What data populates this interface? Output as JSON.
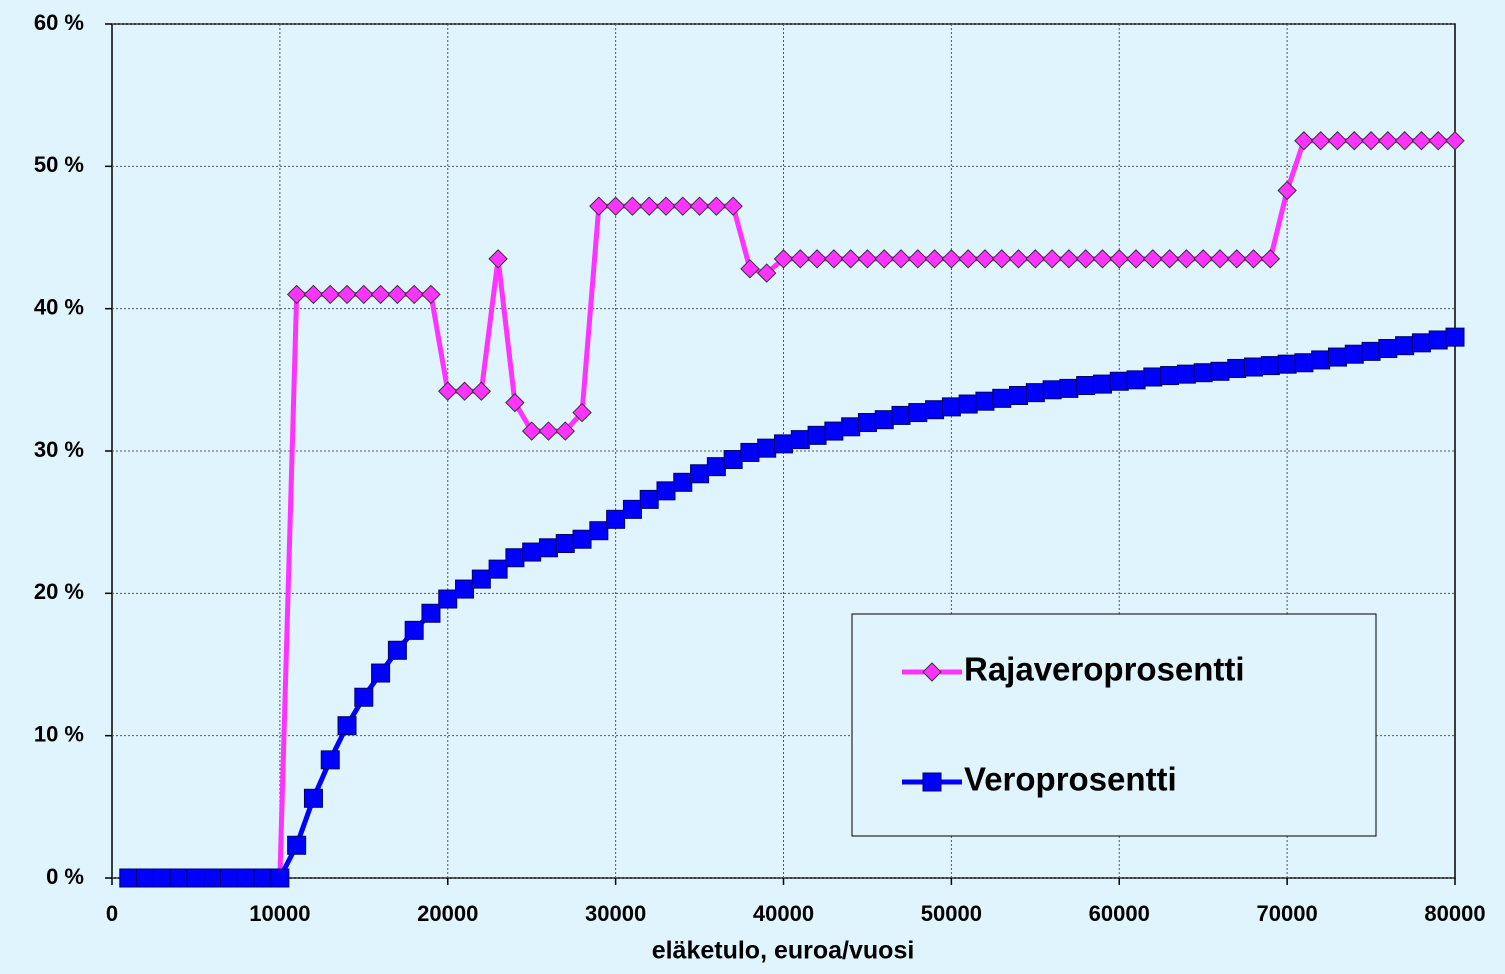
{
  "chart_data": {
    "type": "line",
    "x_label": "eläketulo, euroa/vuosi",
    "x": [
      1000,
      2000,
      3000,
      4000,
      5000,
      6000,
      7000,
      8000,
      9000,
      10000,
      11000,
      12000,
      13000,
      14000,
      15000,
      16000,
      17000,
      18000,
      19000,
      20000,
      21000,
      22000,
      23000,
      24000,
      25000,
      26000,
      27000,
      28000,
      29000,
      30000,
      31000,
      32000,
      33000,
      34000,
      35000,
      36000,
      37000,
      38000,
      39000,
      40000,
      41000,
      42000,
      43000,
      44000,
      45000,
      46000,
      47000,
      48000,
      49000,
      50000,
      51000,
      52000,
      53000,
      54000,
      55000,
      56000,
      57000,
      58000,
      59000,
      60000,
      61000,
      62000,
      63000,
      64000,
      65000,
      66000,
      67000,
      68000,
      69000,
      70000,
      71000,
      72000,
      73000,
      74000,
      75000,
      76000,
      77000,
      78000,
      79000,
      80000
    ],
    "series": [
      {
        "name": "Rajaveroprosentti",
        "color": "#ff33ff",
        "marker": "diamond",
        "values": [
          0,
          0,
          0,
          0,
          0,
          0,
          0,
          0,
          0,
          0,
          41,
          41,
          41,
          41,
          41,
          41,
          41,
          41,
          41,
          34.2,
          34.2,
          34.2,
          43.5,
          33.4,
          31.4,
          31.4,
          31.4,
          32.7,
          47.2,
          47.2,
          47.2,
          47.2,
          47.2,
          47.2,
          47.2,
          47.2,
          47.2,
          42.8,
          42.5,
          43.5,
          43.5,
          43.5,
          43.5,
          43.5,
          43.5,
          43.5,
          43.5,
          43.5,
          43.5,
          43.5,
          43.5,
          43.5,
          43.5,
          43.5,
          43.5,
          43.5,
          43.5,
          43.5,
          43.5,
          43.5,
          43.5,
          43.5,
          43.5,
          43.5,
          43.5,
          43.5,
          43.5,
          43.5,
          43.5,
          48.3,
          51.8,
          51.8,
          51.8,
          51.8,
          51.8,
          51.8,
          51.8,
          51.8,
          51.8,
          51.8
        ]
      },
      {
        "name": "Veroprosentti",
        "color": "#0000ff",
        "marker": "square",
        "values": [
          0,
          0,
          0,
          0,
          0,
          0,
          0,
          0,
          0,
          0,
          2.3,
          5.6,
          8.3,
          10.7,
          12.7,
          14.4,
          16.0,
          17.4,
          18.6,
          19.6,
          20.3,
          21.0,
          21.7,
          22.5,
          22.9,
          23.2,
          23.5,
          23.8,
          24.4,
          25.2,
          25.9,
          26.6,
          27.2,
          27.8,
          28.4,
          28.9,
          29.4,
          29.9,
          30.2,
          30.5,
          30.8,
          31.1,
          31.4,
          31.7,
          32.0,
          32.2,
          32.5,
          32.7,
          32.9,
          33.1,
          33.3,
          33.5,
          33.7,
          33.9,
          34.1,
          34.3,
          34.4,
          34.6,
          34.7,
          34.9,
          35.0,
          35.2,
          35.3,
          35.4,
          35.5,
          35.6,
          35.8,
          35.9,
          36.0,
          36.1,
          36.2,
          36.4,
          36.6,
          36.8,
          37.0,
          37.2,
          37.4,
          37.6,
          37.8,
          38.0
        ]
      }
    ],
    "xlim": [
      0,
      80000
    ],
    "xticks": [
      0,
      10000,
      20000,
      30000,
      40000,
      50000,
      60000,
      70000,
      80000
    ],
    "ylim": [
      0,
      60
    ],
    "yticks": [
      {
        "value": 0,
        "label": "0 %"
      },
      {
        "value": 10,
        "label": "10 %"
      },
      {
        "value": 20,
        "label": "20 %"
      },
      {
        "value": 30,
        "label": "30 %"
      },
      {
        "value": 40,
        "label": "40 %"
      },
      {
        "value": 50,
        "label": "50 %"
      },
      {
        "value": 60,
        "label": "60 %"
      }
    ],
    "grid": true,
    "legend": "lower right"
  }
}
